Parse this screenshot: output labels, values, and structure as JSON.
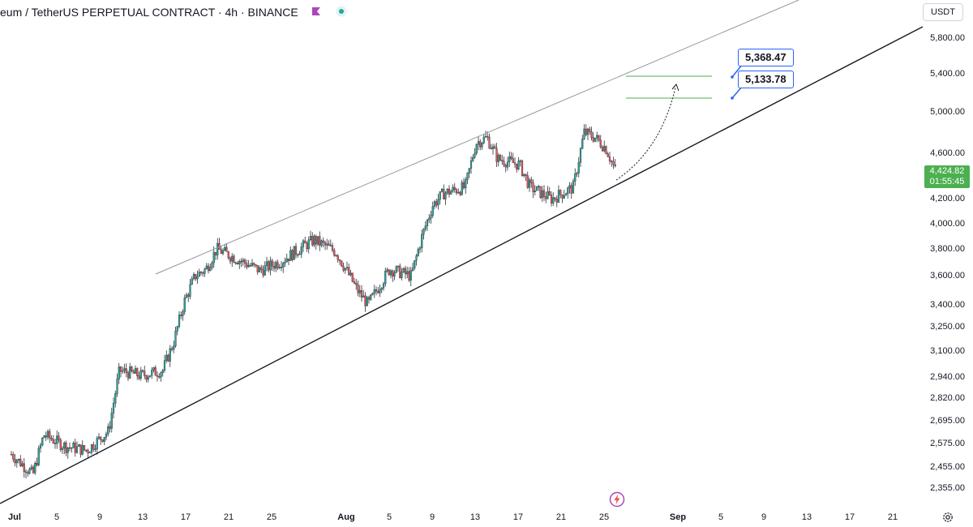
{
  "header": {
    "symbol_title": "eum / TetherUS PERPETUAL CONTRACT · 4h · BINANCE",
    "flag_icon": "flag-icon",
    "status_icon": "live-status-icon",
    "currency_button": "USDT"
  },
  "chart_data": {
    "type": "candlestick",
    "y_ticks": [
      "5,800.00",
      "5,400.00",
      "5,000.00",
      "4,600.00",
      "4,200.00",
      "4,000.00",
      "3,800.00",
      "3,600.00",
      "3,400.00",
      "3,250.00",
      "3,100.00",
      "2,940.00",
      "2,820.00",
      "2,695.00",
      "2,575.00",
      "2,455.00",
      "2,355.00"
    ],
    "x_ticks": [
      {
        "label": "Jul",
        "bold": true
      },
      {
        "label": "5",
        "bold": false
      },
      {
        "label": "9",
        "bold": false
      },
      {
        "label": "13",
        "bold": false
      },
      {
        "label": "17",
        "bold": false
      },
      {
        "label": "21",
        "bold": false
      },
      {
        "label": "25",
        "bold": false
      },
      {
        "label": "Aug",
        "bold": true
      },
      {
        "label": "5",
        "bold": false
      },
      {
        "label": "9",
        "bold": false
      },
      {
        "label": "13",
        "bold": false
      },
      {
        "label": "17",
        "bold": false
      },
      {
        "label": "21",
        "bold": false
      },
      {
        "label": "25",
        "bold": false
      },
      {
        "label": "Sep",
        "bold": true
      },
      {
        "label": "5",
        "bold": false
      },
      {
        "label": "9",
        "bold": false
      },
      {
        "label": "13",
        "bold": false
      },
      {
        "label": "17",
        "bold": false
      },
      {
        "label": "21",
        "bold": false
      }
    ],
    "log_scale": true,
    "current_price": "4,424.82",
    "countdown": "01:55:45",
    "price_path": [
      [
        "Jul 1",
        2520
      ],
      [
        "Jul 3",
        2420
      ],
      [
        "Jul 4",
        2620
      ],
      [
        "Jul 6",
        2560
      ],
      [
        "Jul 8",
        2540
      ],
      [
        "Jul 10",
        2640
      ],
      [
        "Jul 11",
        2980
      ],
      [
        "Jul 13",
        2950
      ],
      [
        "Jul 15",
        2980
      ],
      [
        "Jul 16",
        3150
      ],
      [
        "Jul 17",
        3420
      ],
      [
        "Jul 18",
        3600
      ],
      [
        "Jul 19",
        3650
      ],
      [
        "Jul 20",
        3800
      ],
      [
        "Jul 22",
        3720
      ],
      [
        "Jul 24",
        3640
      ],
      [
        "Jul 26",
        3710
      ],
      [
        "Jul 28",
        3820
      ],
      [
        "Jul 29",
        3870
      ],
      [
        "Jul 31",
        3780
      ],
      [
        "Aug 2",
        3500
      ],
      [
        "Aug 3",
        3400
      ],
      [
        "Aug 5",
        3650
      ],
      [
        "Aug 7",
        3600
      ],
      [
        "Aug 8",
        3900
      ],
      [
        "Aug 9",
        4150
      ],
      [
        "Aug 10",
        4250
      ],
      [
        "Aug 12",
        4300
      ],
      [
        "Aug 13",
        4700
      ],
      [
        "Aug 14",
        4750
      ],
      [
        "Aug 15",
        4550
      ],
      [
        "Aug 17",
        4500
      ],
      [
        "Aug 18",
        4300
      ],
      [
        "Aug 20",
        4200
      ],
      [
        "Aug 21",
        4250
      ],
      [
        "Aug 22",
        4300
      ],
      [
        "Aug 23",
        4800
      ],
      [
        "Aug 24",
        4750
      ],
      [
        "Aug 25",
        4650
      ],
      [
        "Aug 26",
        4420
      ]
    ],
    "targets": [
      {
        "label": "5,368.47",
        "value": 5368.47
      },
      {
        "label": "5,133.78",
        "value": 5133.78
      }
    ],
    "colors": {
      "up": "#26a69a",
      "down": "#ef5350",
      "candle_body": "#2a2e39",
      "trendline": "#131722",
      "upper_line": "#9598a1",
      "target_lines": "#4caf50",
      "callout_border": "#2962ff",
      "price_label": "#4caf50"
    }
  }
}
